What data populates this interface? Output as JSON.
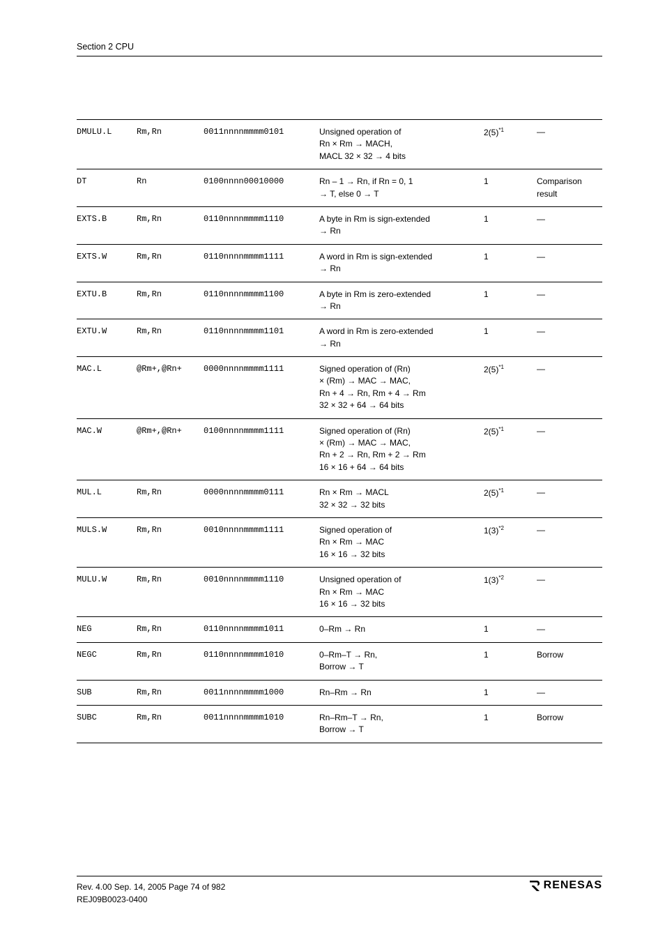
{
  "section_header": "Section 2   CPU",
  "rows": [
    {
      "mn": "DMULU.L",
      "op": "Rm,Rn",
      "code": "0011nnnnmmmm0101",
      "desc": "Unsigned operation of\nRn × Rm → MACH,\nMACL 32 × 32 → 4 bits",
      "cyc": "2(5)",
      "cyc_sup": "*1",
      "tbit": "—"
    },
    {
      "mn": "DT",
      "op": "Rn",
      "code": "0100nnnn00010000",
      "desc": "Rn – 1 → Rn, if Rn = 0, 1\n→ T, else 0 → T",
      "cyc": "1",
      "tbit": "Comparison result"
    },
    {
      "mn": "EXTS.B",
      "op": "Rm,Rn",
      "code": "0110nnnnmmmm1110",
      "desc": "A byte in Rm is sign-extended\n→ Rn",
      "cyc": "1",
      "tbit": "—"
    },
    {
      "mn": "EXTS.W",
      "op": "Rm,Rn",
      "code": "0110nnnnmmmm1111",
      "desc": "A word in Rm is sign-extended\n→ Rn",
      "cyc": "1",
      "tbit": "—"
    },
    {
      "mn": "EXTU.B",
      "op": "Rm,Rn",
      "code": "0110nnnnmmmm1100",
      "desc": "A byte in Rm is zero-extended\n→ Rn",
      "cyc": "1",
      "tbit": "—"
    },
    {
      "mn": "EXTU.W",
      "op": "Rm,Rn",
      "code": "0110nnnnmmmm1101",
      "desc": "A word in Rm is zero-extended\n→ Rn",
      "cyc": "1",
      "tbit": "—"
    },
    {
      "mn": "MAC.L",
      "op": "@Rm+,@Rn+",
      "code": "0000nnnnmmmm1111",
      "desc": "Signed operation of (Rn)\n× (Rm) → MAC → MAC,\nRn + 4 → Rn, Rm + 4 → Rm\n32 × 32 + 64 → 64 bits",
      "cyc": "2(5)",
      "cyc_sup": "*1",
      "tbit": "—"
    },
    {
      "mn": "MAC.W",
      "op": "@Rm+,@Rn+",
      "code": "0100nnnnmmmm1111",
      "desc": "Signed operation of (Rn)\n× (Rm) → MAC → MAC,\nRn + 2 → Rn, Rm + 2 → Rm\n16 × 16 + 64 → 64 bits",
      "cyc": "2(5)",
      "cyc_sup": "*1",
      "tbit": "—"
    },
    {
      "mn": "MUL.L",
      "op": "Rm,Rn",
      "code": "0000nnnnmmmm0111",
      "desc": "Rn × Rm → MACL\n32 × 32 → 32 bits",
      "cyc": "2(5)",
      "cyc_sup": "*1",
      "tbit": "—"
    },
    {
      "mn": "MULS.W",
      "op": "Rm,Rn",
      "code": "0010nnnnmmmm1111",
      "desc": "Signed operation of\nRn × Rm → MAC\n16 × 16 → 32 bits",
      "cyc": "1(3)",
      "cyc_sup": "*2",
      "tbit": "—"
    },
    {
      "mn": "MULU.W",
      "op": "Rm,Rn",
      "code": "0010nnnnmmmm1110",
      "desc": "Unsigned operation of\nRn × Rm → MAC\n16 × 16 → 32 bits",
      "cyc": "1(3)",
      "cyc_sup": "*2",
      "tbit": "—"
    },
    {
      "mn": "NEG",
      "op": "Rm,Rn",
      "code": "0110nnnnmmmm1011",
      "desc": "0–Rm → Rn",
      "cyc": "1",
      "tbit": "—"
    },
    {
      "mn": "NEGC",
      "op": "Rm,Rn",
      "code": "0110nnnnmmmm1010",
      "desc": "0–Rm–T → Rn,\nBorrow → T",
      "cyc": "1",
      "tbit": "Borrow"
    },
    {
      "mn": "SUB",
      "op": "Rm,Rn",
      "code": "0011nnnnmmmm1000",
      "desc": "Rn–Rm → Rn",
      "cyc": "1",
      "tbit": "—"
    },
    {
      "mn": "SUBC",
      "op": "Rm,Rn",
      "code": "0011nnnnmmmm1010",
      "desc": "Rn–Rm–T → Rn,\nBorrow → T",
      "cyc": "1",
      "tbit": "Borrow"
    }
  ],
  "footer": {
    "rev_line": "Rev. 4.00  Sep. 14, 2005  Page 74 of 982",
    "doc_id": "REJ09B0023-0400",
    "logo_text": "RENESAS"
  }
}
